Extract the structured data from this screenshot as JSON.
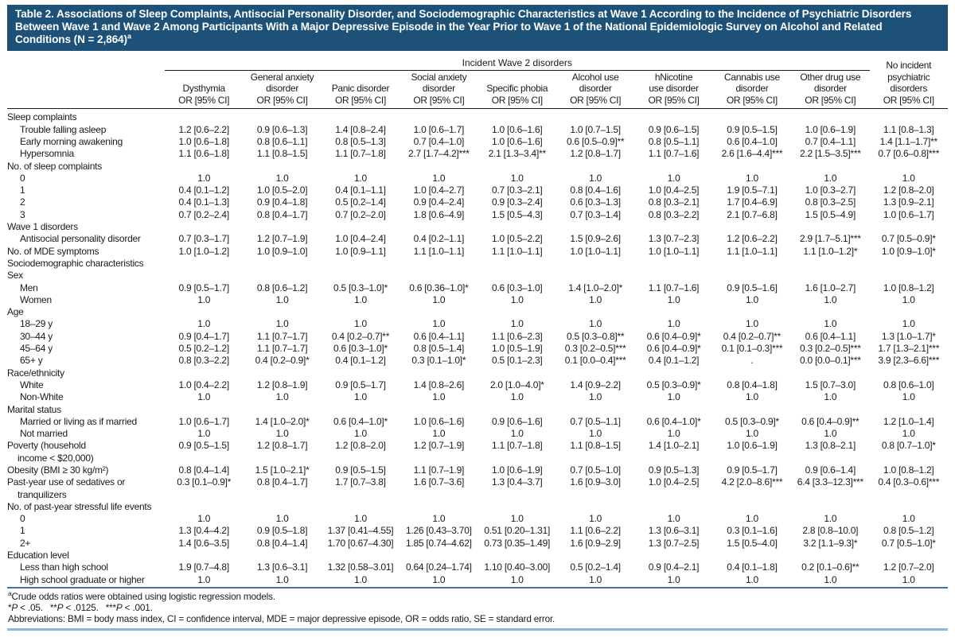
{
  "title_main": "Table 2. Associations of Sleep Complaints, Antisocial Personality Disorder, and Sociodemographic Characteristics at Wave 1 According to the Incidence of Psychiatric Disorders Between Wave 1 and Wave 2 Among Participants With a Major Depressive Episode in the Year Prior to Wave 1 of the National Epidemiologic Survey on Alcohol and Related Conditions (N = 2,864)",
  "title_sup": "a",
  "colors": {
    "title_bar": "#1d5178",
    "rule_dark": "#1a1a1a",
    "rule_blue": "#46719c",
    "rule_light_blue": "#8fb4d4"
  },
  "table": {
    "spanner": "Incident Wave 2 disorders",
    "columns": [
      {
        "id": "dysthymia",
        "lines": [
          "Dysthymia",
          "OR [95% CI]"
        ]
      },
      {
        "id": "general-anxiety-disorder",
        "lines": [
          "General anxiety",
          "disorder",
          "OR [95% CI]"
        ]
      },
      {
        "id": "panic-disorder",
        "lines": [
          "Panic disorder",
          "OR [95% CI]"
        ]
      },
      {
        "id": "social-anxiety-disorder",
        "lines": [
          "Social anxiety",
          "disorder",
          "OR [95% CI]"
        ]
      },
      {
        "id": "specific-phobia",
        "lines": [
          "Specific phobia",
          "OR [95% CI]"
        ]
      },
      {
        "id": "alcohol-use-disorder",
        "lines": [
          "Alcohol use",
          "disorder",
          "OR [95% CI]"
        ]
      },
      {
        "id": "nicotine-use-disorder",
        "lines": [
          "hNicotine",
          "use disorder",
          "OR [95% CI]"
        ]
      },
      {
        "id": "cannabis-use-disorder",
        "lines": [
          "Cannabis use",
          "disorder",
          "OR [95% CI]"
        ]
      },
      {
        "id": "other-drug-use-disorder",
        "lines": [
          "Other drug use",
          "disorder",
          "OR [95% CI]"
        ]
      }
    ],
    "last_column": {
      "id": "no-incident-psychiatric-disorders",
      "lines": [
        "No incident",
        "psychiatric",
        "disorders",
        "OR [95% CI]"
      ]
    },
    "rows": [
      {
        "t": "section",
        "label": "Sleep complaints",
        "ind": 0
      },
      {
        "t": "row",
        "label": "Trouble falling asleep",
        "ind": 1,
        "v": [
          "1.2 [0.6–2.2]",
          "0.9 [0.6–1.3]",
          "1.4 [0.8–2.4]",
          "1.0 [0.6–1.7]",
          "1.0 [0.6–1.6]",
          "1.0 [0.7–1.5]",
          "0.9 [0.6–1.5]",
          "0.9 [0.5–1.5]",
          "1.0 [0.6–1.9]",
          "1.1 [0.8–1.3]"
        ]
      },
      {
        "t": "row",
        "label": "Early morning awakening",
        "ind": 1,
        "v": [
          "1.0 [0.6–1.8]",
          "0.8 [0.6–1.1]",
          "0.8 [0.5–1.3]",
          "0.7 [0.4–1.0]",
          "1.0 [0.6–1.6]",
          "0.6 [0.5–0.9]**",
          "0.8 [0.5–1.1]",
          "0.6 [0.4–1.0]",
          "0.7 [0.4–1.1]",
          "1.4 [1.1–1.7]**"
        ]
      },
      {
        "t": "row",
        "label": "Hypersomnia",
        "ind": 1,
        "v": [
          "1.1 [0.6–1.8]",
          "1.1 [0.8–1.5]",
          "1.1 [0.7–1.8]",
          "2.7 [1.7–4.2]***",
          "2.1 [1.3–3.4]**",
          "1.2 [0.8–1.7]",
          "1.1 [0.7–1.6]",
          "2.6 [1.6–4.4]***",
          "2.2 [1.5–3.5]***",
          "0.7 [0.6–0.8]***"
        ]
      },
      {
        "t": "section",
        "label": "No. of sleep complaints",
        "ind": 0
      },
      {
        "t": "row",
        "label": "0",
        "ind": 1,
        "v": [
          "1.0",
          "1.0",
          "1.0",
          "1.0",
          "1.0",
          "1.0",
          "1.0",
          "1.0",
          "1.0",
          "1.0"
        ]
      },
      {
        "t": "row",
        "label": "1",
        "ind": 1,
        "v": [
          "0.4 [0.1–1.2]",
          "1.0 [0.5–2.0]",
          "0.4 [0.1–1.1]",
          "1.0 [0.4–2.7]",
          "0.7 [0.3–2.1]",
          "0.8 [0.4–1.6]",
          "1.0 [0.4–2.5]",
          "1.9 [0.5–7.1]",
          "1.0 [0.3–2.7]",
          "1.2 [0.8–2.0]"
        ]
      },
      {
        "t": "row",
        "label": "2",
        "ind": 1,
        "v": [
          "0.4 [0.1–1.3]",
          "0.9 [0.4–1.8]",
          "0.5 [0.2–1.4]",
          "0.9 [0.4–2.4]",
          "0.9 [0.3–2.4]",
          "0.6 [0.3–1.3]",
          "0.8 [0.3–2.1]",
          "1.7 [0.4–6.9]",
          "0.8 [0.3–2.5]",
          "1.3 [0.9–2.1]"
        ]
      },
      {
        "t": "row",
        "label": "3",
        "ind": 1,
        "v": [
          "0.7 [0.2–2.4]",
          "0.8 [0.4–1.7]",
          "0.7 [0.2–2.0]",
          "1.8 [0.6–4.9]",
          "1.5 [0.5–4.3]",
          "0.7 [0.3–1.4]",
          "0.8 [0.3–2.2]",
          "2.1 [0.7–6.8]",
          "1.5 [0.5–4.9]",
          "1.0 [0.6–1.7]"
        ]
      },
      {
        "t": "section",
        "label": "Wave 1 disorders",
        "ind": 0
      },
      {
        "t": "row",
        "label": "Antisocial personality disorder",
        "ind": 1,
        "v": [
          "0.7 [0.3–1.7]",
          "1.2 [0.7–1.9]",
          "1.0 [0.4–2.4]",
          "0.4 [0.2–1.1]",
          "1.0 [0.5–2.2]",
          "1.5 [0.9–2.6]",
          "1.3 [0.7–2.3]",
          "1.2 [0.6–2.2]",
          "2.9 [1.7–5.1]***",
          "0.7 [0.5–0.9]*"
        ]
      },
      {
        "t": "row",
        "label": "No. of MDE symptoms",
        "ind": 0,
        "v": [
          "1.0 [1.0–1.2]",
          "1.0 [0.9–1.0]",
          "1.0 [0.9–1.1]",
          "1.1 [1.0–1.1]",
          "1.1 [1.0–1.1]",
          "1.0 [1.0–1.1]",
          "1.0 [1.0–1.1]",
          "1.1 [1.0–1.1]",
          "1.1 [1.0–1.2]*",
          "1.0 [0.9–1.0]*"
        ]
      },
      {
        "t": "section",
        "label": "Sociodemographic characteristics",
        "ind": 0
      },
      {
        "t": "section",
        "label": "Sex",
        "ind": 0
      },
      {
        "t": "row",
        "label": "Men",
        "ind": 1,
        "v": [
          "0.9 [0.5–1.7]",
          "0.8 [0.6–1.2]",
          "0.5 [0.3–1.0]*",
          "0.6 [0.36–1.0]*",
          "0.6 [0.3–1.0]",
          "1.4 [1.0–2.0]*",
          "1.1 [0.7–1.6]",
          "0.9 [0.5–1.6]",
          "1.6 [1.0–2.7]",
          "1.0 [0.8–1.2]"
        ]
      },
      {
        "t": "row",
        "label": "Women",
        "ind": 1,
        "v": [
          "1.0",
          "1.0",
          "1.0",
          "1.0",
          "1.0",
          "1.0",
          "1.0",
          "1.0",
          "1.0",
          "1.0"
        ]
      },
      {
        "t": "section",
        "label": "Age",
        "ind": 0
      },
      {
        "t": "row",
        "label": "18–29 y",
        "ind": 1,
        "v": [
          "1.0",
          "1.0",
          "1.0",
          "1.0",
          "1.0",
          "1.0",
          "1.0",
          "1.0",
          "1.0",
          "1.0"
        ]
      },
      {
        "t": "row",
        "label": "30–44 y",
        "ind": 1,
        "v": [
          "0.9 [0.4–1.7]",
          "1.1 [0.7–1.7]",
          "0.4 [0.2–0.7]**",
          "0.6 [0.4–1.1]",
          "1.1 [0.6–2.3]",
          "0.5 [0.3–0.8]**",
          "0.6 [0.4–0.9]*",
          "0.4 [0.2–0.7]**",
          "0.6 [0.4–1.1]",
          "1.3 [1.0–1.7]*"
        ]
      },
      {
        "t": "row",
        "label": "45–64 y",
        "ind": 1,
        "v": [
          "0.5 [0.2–1.2]",
          "1.1 [0.7–1.7]",
          "0.6 [0.3–1.0]*",
          "0.8 [0.5–1.4]",
          "1.0 [0.5–1.9]",
          "0.3 [0.2–0.5]***",
          "0.6 [0.4–0.9]*",
          "0.1 [0.1–0.3]***",
          "0.3 [0.2–0.5]***",
          "1.7 [1.3–2.1]***"
        ]
      },
      {
        "t": "row",
        "label": "65+ y",
        "ind": 1,
        "v": [
          "0.8 [0.3–2.2]",
          "0.4 [0.2–0.9]*",
          "0.4 [0.1–1.2]",
          "0.3 [0.1–1.0]*",
          "0.5 [0.1–2.3]",
          "0.1 [0.0–0.4]***",
          "0.4 [0.1–1.2]",
          ".",
          "0.0 [0.0–0.1]***",
          "3.9 [2.3–6.6]***"
        ]
      },
      {
        "t": "section",
        "label": "Race/ethnicity",
        "ind": 0
      },
      {
        "t": "row",
        "label": "White",
        "ind": 1,
        "v": [
          "1.0 [0.4–2.2]",
          "1.2 [0.8–1.9]",
          "0.9 [0.5–1.7]",
          "1.4 [0.8–2.6]",
          "2.0 [1.0–4.0]*",
          "1.4 [0.9–2.2]",
          "0.5 [0.3–0.9]*",
          "0.8 [0.4–1.8]",
          "1.5 [0.7–3.0]",
          "0.8 [0.6–1.0]"
        ]
      },
      {
        "t": "row",
        "label": "Non-White",
        "ind": 1,
        "v": [
          "1.0",
          "1.0",
          "1.0",
          "1.0",
          "1.0",
          "1.0",
          "1.0",
          "1.0",
          "1.0",
          "1.0"
        ]
      },
      {
        "t": "section",
        "label": "Marital status",
        "ind": 0
      },
      {
        "t": "row",
        "label": "Married or living as if married",
        "ind": 1,
        "v": [
          "1.0 [0.6–1.7]",
          "1.4 [1.0–2.0]*",
          "0.6 [0.4–1.0]*",
          "1.0 [0.6–1.6]",
          "0.9 [0.6–1.6]",
          "0.7 [0.5–1.1]",
          "0.6 [0.4–1.0]*",
          "0.5 [0.3–0.9]*",
          "0.6 [0.4–0.9]**",
          "1.2 [1.0–1.4]"
        ]
      },
      {
        "t": "row",
        "label": "Not married",
        "ind": 1,
        "v": [
          "1.0",
          "1.0",
          "1.0",
          "1.0",
          "1.0",
          "1.0",
          "1.0",
          "1.0",
          "1.0",
          "1.0"
        ]
      },
      {
        "t": "row",
        "label": "Poverty (household",
        "label2": "income < $20,000)",
        "ind": 0,
        "v": [
          "0.9 [0.5–1.5]",
          "1.2 [0.8–1.7]",
          "1.2 [0.8–2.0]",
          "1.2 [0.7–1.9]",
          "1.1 [0.7–1.8]",
          "1.1 [0.8–1.5]",
          "1.4 [1.0–2.1]",
          "1.0 [0.6–1.9]",
          "1.3 [0.8–2.1]",
          "0.8 [0.7–1.0]*"
        ]
      },
      {
        "t": "row",
        "label": "Obesity (BMI ≥ 30 kg/m²)",
        "ind": 0,
        "v": [
          "0.8 [0.4–1.4]",
          "1.5 [1.0–2.1]*",
          "0.9 [0.5–1.5]",
          "1.1 [0.7–1.9]",
          "1.0 [0.6–1.9]",
          "0.7 [0.5–1.0]",
          "0.9 [0.5–1.3]",
          "0.9 [0.5–1.7]",
          "0.9 [0.6–1.4]",
          "1.0 [0.8–1.2]"
        ]
      },
      {
        "t": "row",
        "label": "Past-year use of sedatives or",
        "label2": "tranquilizers",
        "ind": 0,
        "v": [
          "0.3 [0.1–0.9]*",
          "0.8 [0.4–1.7]",
          "1.7 [0.7–3.8]",
          "1.6 [0.7–3.6]",
          "1.3 [0.4–3.7]",
          "1.6 [0.9–3.0]",
          "1.0 [0.4–2.5]",
          "4.2 [2.0–8.6]***",
          "6.4 [3.3–12.3]***",
          "0.4 [0.3–0.6]***"
        ]
      },
      {
        "t": "section",
        "label": "No. of past-year stressful life events",
        "ind": 0
      },
      {
        "t": "row",
        "label": "0",
        "ind": 1,
        "v": [
          "1.0",
          "1.0",
          "1.0",
          "1.0",
          "1.0",
          "1.0",
          "1.0",
          "1.0",
          "1.0",
          "1.0"
        ]
      },
      {
        "t": "row",
        "label": "1",
        "ind": 1,
        "v": [
          "1.3 [0.4–4.2]",
          "0.9 [0.5–1.8]",
          "1.37 [0.41–4.55]",
          "1.26 [0.43–3.70]",
          "0.51 [0.20–1.31]",
          "1.1 [0.6–2.2]",
          "1.3 [0.6–3.1]",
          "0.3 [0.1–1.6]",
          "2.8 [0.8–10.0]",
          "0.8 [0.5–1.2]"
        ]
      },
      {
        "t": "row",
        "label": "2+",
        "ind": 1,
        "v": [
          "1.4 [0.6–3.5]",
          "0.8 [0.4–1.4]",
          "1.70 [0.67–4.30]",
          "1.85 [0.74–4.62]",
          "0.73 [0.35–1.49]",
          "1.6 [0.9–2.9]",
          "1.3 [0.7–2.5]",
          "1.5 [0.5–4.0]",
          "3.2 [1.1–9.3]*",
          "0.7 [0.5–1.0]*"
        ]
      },
      {
        "t": "section",
        "label": "Education level",
        "ind": 0
      },
      {
        "t": "row",
        "label": "Less than high school",
        "ind": 1,
        "v": [
          "1.9 [0.7–4.8]",
          "1.3 [0.6–3.1]",
          "1.32 [0.58–3.01]",
          "0.64 [0.24–1.74]",
          "1.10 [0.40–3.00]",
          "0.5 [0.2–1.4]",
          "0.9 [0.4–2.1]",
          "0.4 [0.1–1.8]",
          "0.2 [0.1–0.6]**",
          "1.2 [0.7–2.0]"
        ]
      },
      {
        "t": "row",
        "label": "High school graduate or higher",
        "ind": 1,
        "v": [
          "1.0",
          "1.0",
          "1.0",
          "1.0",
          "1.0",
          "1.0",
          "1.0",
          "1.0",
          "1.0",
          "1.0"
        ]
      }
    ]
  },
  "footnotes": {
    "crude_sup": "a",
    "crude": "Crude odds ratios were obtained using logistic regression models.",
    "significance": [
      {
        "stars": "*",
        "p": "P",
        "rest": " < .05."
      },
      {
        "stars": "**",
        "p": "P",
        "rest": " < .0125."
      },
      {
        "stars": "***",
        "p": "P",
        "rest": " < .001."
      }
    ],
    "abbreviations": "Abbreviations: BMI = body mass index, CI = confidence interval, MDE = major depressive episode, OR = odds ratio, SE = standard error."
  }
}
